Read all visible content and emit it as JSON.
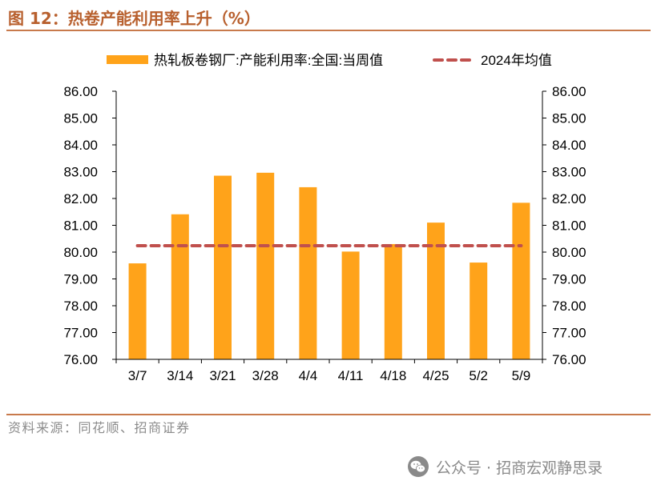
{
  "figure": {
    "title": "图 12：热卷产能利用率上升（%）",
    "source": "资料来源：同花顺、招商证券"
  },
  "watermark": {
    "icon": "wechat-icon",
    "text": "公众号 · 招商宏观静思录"
  },
  "colors": {
    "title": "#B8602E",
    "rule": "#C87A4C",
    "bar": "#FFA31A",
    "avg_line": "#C0504D",
    "axis": "#000000",
    "text": "#000000",
    "source": "#8C8C8C",
    "watermark": "#8A8A8A"
  },
  "chart_data": {
    "type": "bar",
    "categories": [
      "3/7",
      "3/14",
      "3/21",
      "3/28",
      "4/4",
      "4/11",
      "4/18",
      "4/25",
      "5/2",
      "5/9"
    ],
    "series": [
      {
        "name": "热轧板卷钢厂:产能利用率:全国:当周值",
        "type": "bar",
        "axis": "left",
        "values": [
          79.58,
          81.41,
          82.85,
          82.96,
          82.42,
          80.02,
          80.3,
          81.1,
          79.61,
          81.84
        ]
      },
      {
        "name": "2024年均值",
        "type": "line",
        "style": "dashed",
        "axis": "left",
        "values": [
          80.24,
          80.24,
          80.24,
          80.24,
          80.24,
          80.24,
          80.24,
          80.24,
          80.24,
          80.24
        ]
      }
    ],
    "ylim": [
      76,
      86
    ],
    "y2lim": [
      76,
      86
    ],
    "ytick_labels": [
      "76.00",
      "77.00",
      "78.00",
      "79.00",
      "80.00",
      "81.00",
      "82.00",
      "83.00",
      "84.00",
      "85.00",
      "86.00"
    ],
    "legend": "top",
    "grid": false
  }
}
